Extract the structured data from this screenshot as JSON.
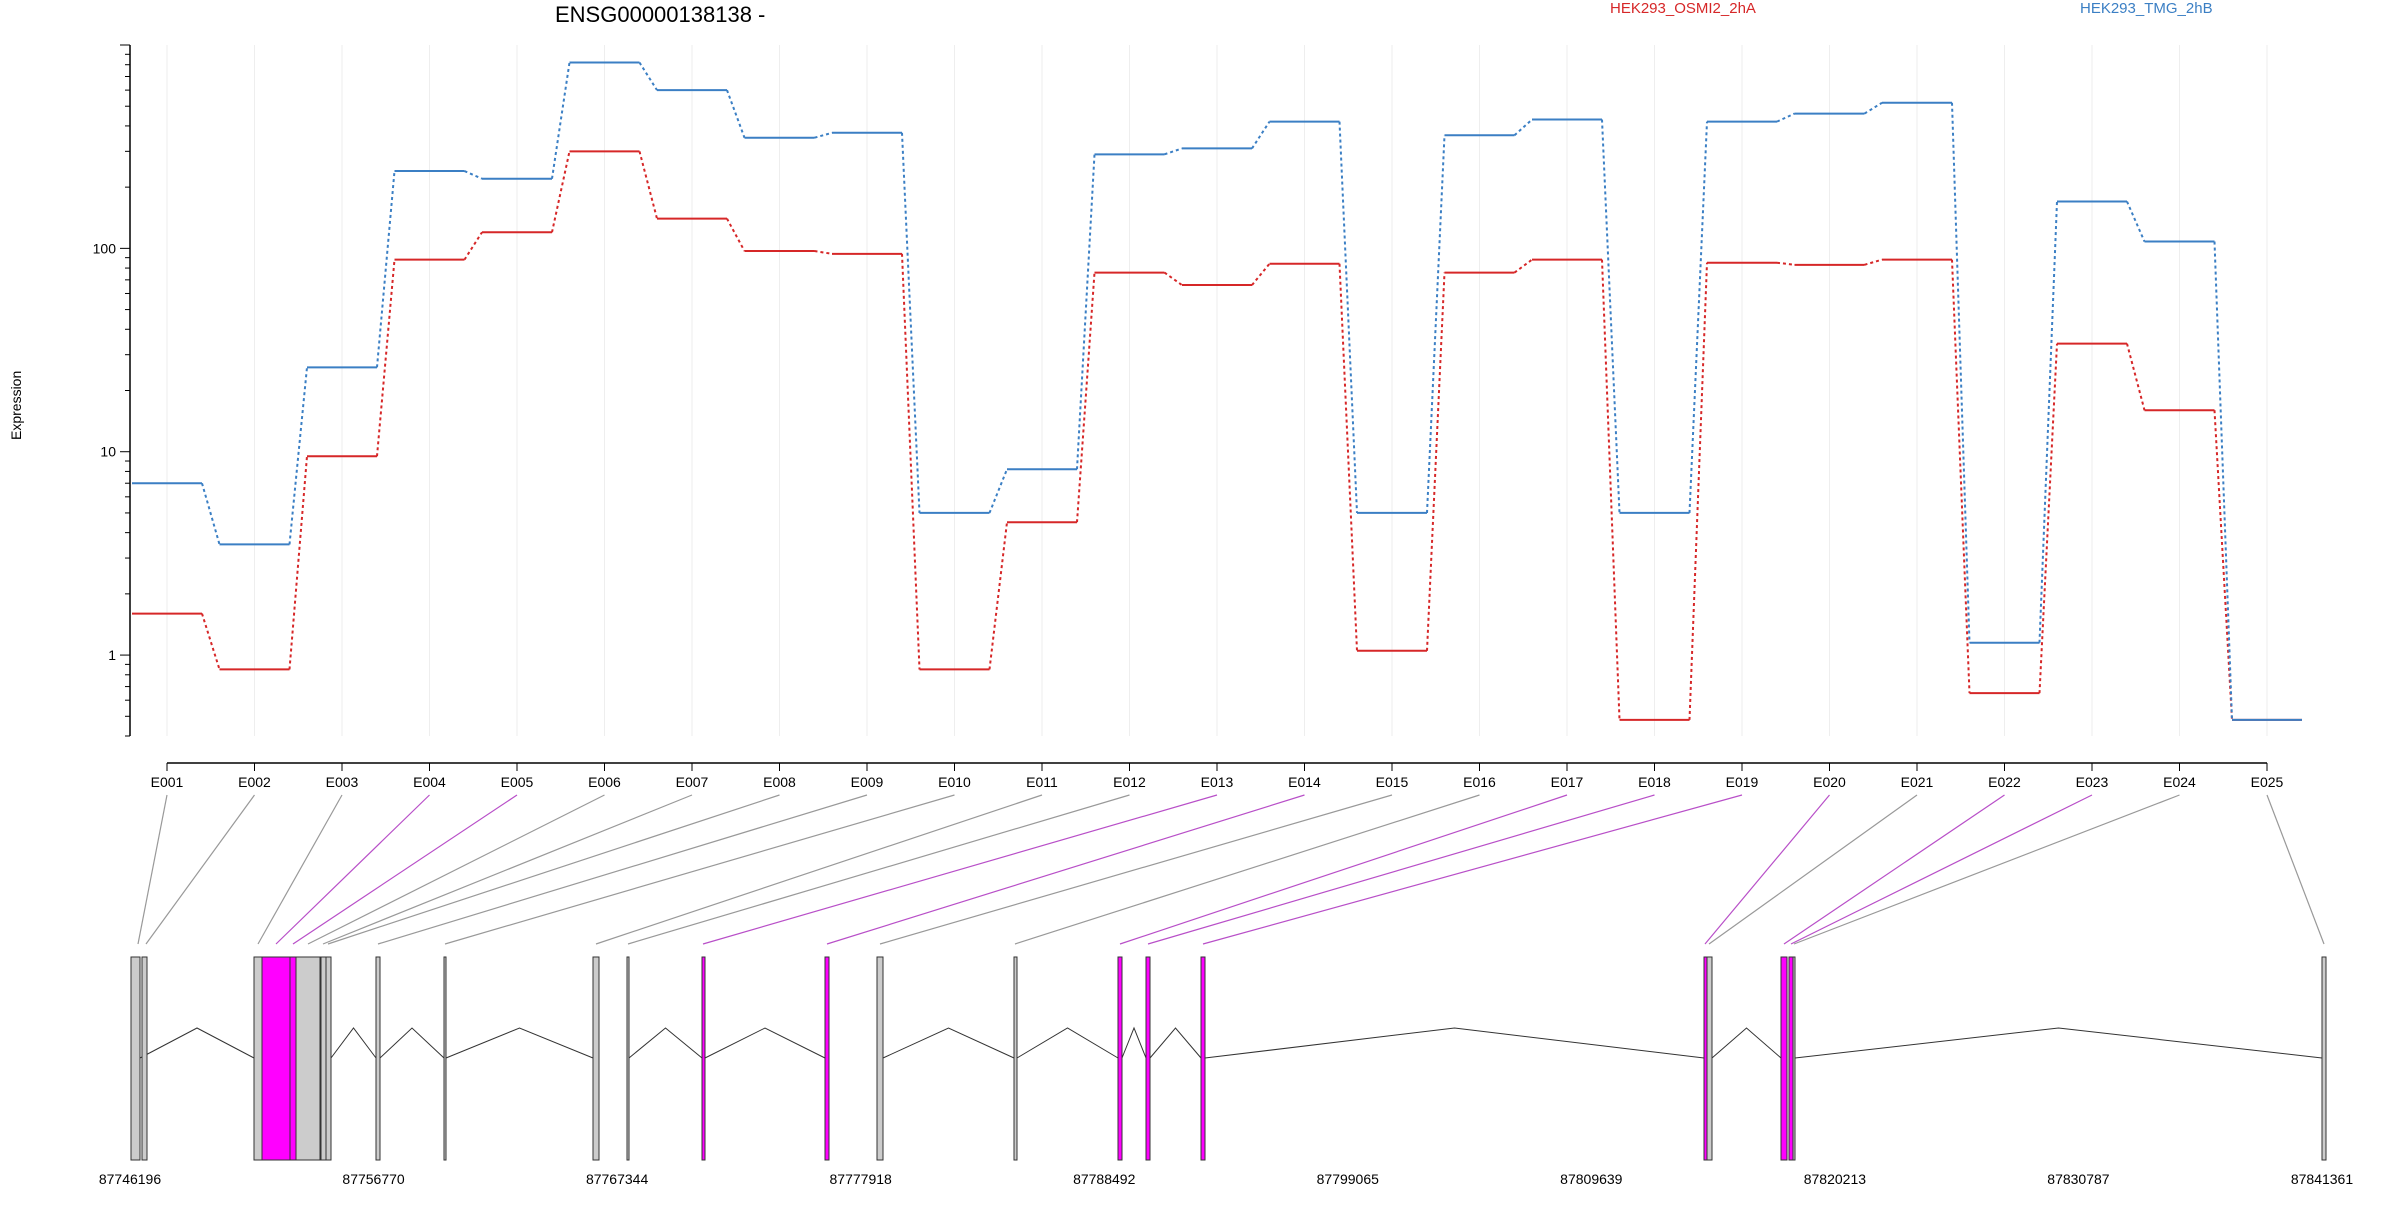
{
  "chart_data": {
    "type": "line",
    "title": "ENSG00000138138 -",
    "ylabel": "Expression",
    "yscale": "log",
    "ylim": [
      0.4,
      1000
    ],
    "yticks": [
      {
        "value": 1,
        "label": "1"
      },
      {
        "value": 10,
        "label": "10"
      },
      {
        "value": 100,
        "label": "100"
      }
    ],
    "categories": [
      "E001",
      "E002",
      "E003",
      "E004",
      "E005",
      "E006",
      "E007",
      "E008",
      "E009",
      "E010",
      "E011",
      "E012",
      "E013",
      "E014",
      "E015",
      "E016",
      "E017",
      "E018",
      "E019",
      "E020",
      "E021",
      "E022",
      "E023",
      "E024",
      "E025"
    ],
    "series": [
      {
        "name": "HEK293_OSMI2_2hA",
        "color": "#d62728",
        "values": [
          1.6,
          0.85,
          9.5,
          88,
          120,
          300,
          140,
          97,
          94,
          0.85,
          4.5,
          76,
          66,
          84,
          1.05,
          76,
          88,
          0.48,
          85,
          83,
          88,
          0.65,
          34,
          16,
          0.48
        ]
      },
      {
        "name": "HEK293_TMG_2hB",
        "color": "#3b7fc4",
        "values": [
          7,
          3.5,
          26,
          240,
          220,
          820,
          600,
          350,
          370,
          5,
          8.2,
          290,
          310,
          420,
          5,
          360,
          430,
          5,
          420,
          460,
          520,
          1.15,
          170,
          108,
          0.48
        ]
      }
    ],
    "genome": {
      "coordinate_labels": [
        "87746196",
        "87756770",
        "87767344",
        "87777918",
        "87788492",
        "87799065",
        "87809639",
        "87820213",
        "87830787",
        "87841361"
      ],
      "range": [
        87746196,
        87841361
      ],
      "highlight_color": "#ff00ff",
      "line_color_default": "#999999",
      "line_color_highlight": "#b84fc8",
      "exon_highlight": [
        false,
        false,
        false,
        true,
        true,
        false,
        false,
        false,
        false,
        false,
        false,
        false,
        true,
        true,
        false,
        false,
        true,
        true,
        true,
        true,
        false,
        true,
        true,
        false,
        false
      ]
    }
  }
}
